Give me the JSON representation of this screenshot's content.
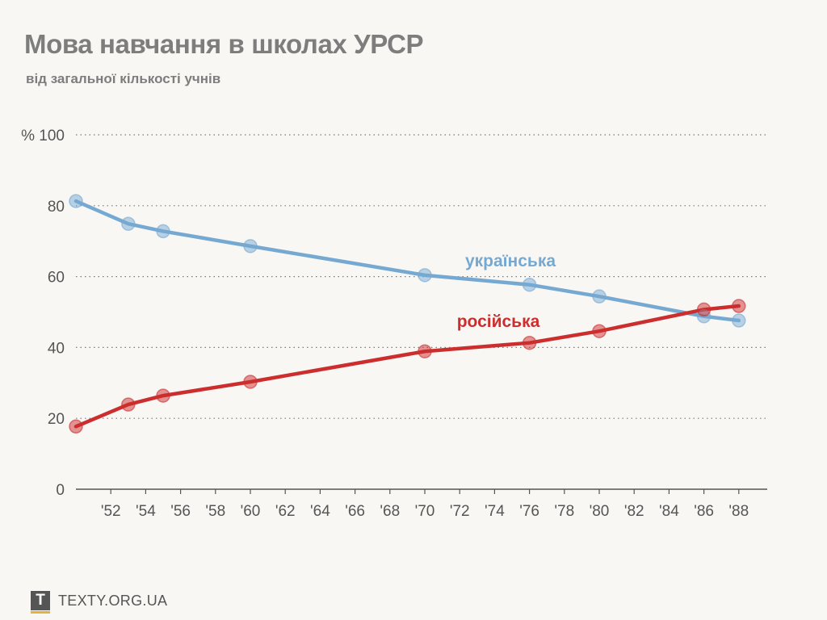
{
  "chart_data": {
    "type": "line",
    "title": "Мова навчання в школах УРСР",
    "subtitle": "від загальної кількості учнів",
    "y_unit": "%",
    "ylim": [
      0,
      100
    ],
    "y_ticks": [
      0,
      20,
      40,
      60,
      80,
      100
    ],
    "x_range": [
      1950,
      1989
    ],
    "x_ticks": [
      1952,
      1954,
      1956,
      1958,
      1960,
      1962,
      1964,
      1966,
      1968,
      1970,
      1972,
      1974,
      1976,
      1978,
      1980,
      1982,
      1984,
      1986,
      1988
    ],
    "x_tick_labels": [
      "'52",
      "'54",
      "'56",
      "'58",
      "'60",
      "'62",
      "'64",
      "'66",
      "'68",
      "'70",
      "'72",
      "'74",
      "'76",
      "'78",
      "'80",
      "'82",
      "'84",
      "'86",
      "'88"
    ],
    "grid": "horizontal dotted",
    "series": [
      {
        "name": "українська",
        "color": "#76a9d2",
        "x": [
          1950,
          1953,
          1955,
          1960,
          1970,
          1976,
          1980,
          1986,
          1988
        ],
        "y": [
          81.3,
          74.9,
          72.8,
          68.6,
          60.4,
          57.7,
          54.4,
          48.8,
          47.6
        ]
      },
      {
        "name": "російська",
        "color": "#cc2e2e",
        "x": [
          1950,
          1953,
          1955,
          1960,
          1970,
          1976,
          1980,
          1986,
          1988
        ],
        "y": [
          17.7,
          23.9,
          26.4,
          30.3,
          38.9,
          41.3,
          44.6,
          50.7,
          51.7
        ]
      }
    ]
  },
  "footer": {
    "brand": "TEXTY.ORG.UA",
    "logo_letter": "T"
  }
}
